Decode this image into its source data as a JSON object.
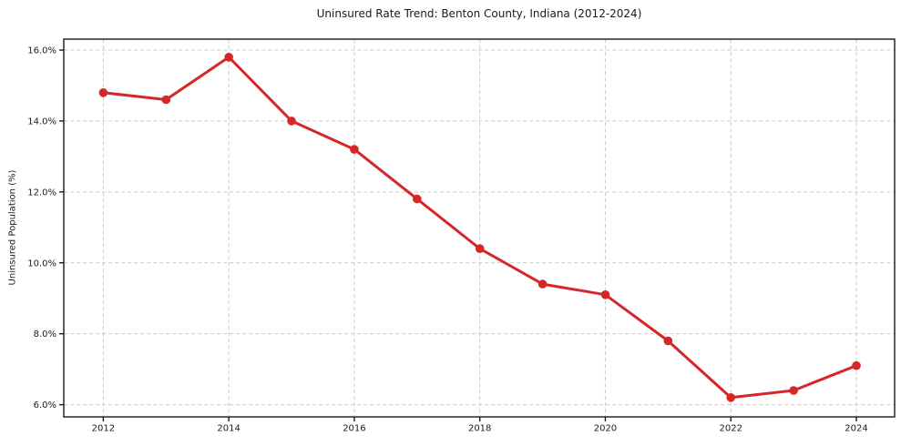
{
  "chart_data": {
    "type": "line",
    "title": "Uninsured Rate Trend: Benton County, Indiana (2012-2024)",
    "xlabel": "",
    "ylabel": "Uninsured Population (%)",
    "x": [
      2012,
      2013,
      2014,
      2015,
      2016,
      2017,
      2018,
      2019,
      2020,
      2021,
      2022,
      2023,
      2024
    ],
    "values": [
      14.8,
      14.6,
      15.8,
      14.0,
      13.2,
      11.8,
      10.4,
      9.4,
      9.1,
      7.8,
      6.2,
      6.4,
      7.1
    ],
    "x_ticks": [
      2012,
      2014,
      2016,
      2018,
      2020,
      2022,
      2024
    ],
    "x_tick_labels": [
      "2012",
      "2014",
      "2016",
      "2018",
      "2020",
      "2022",
      "2024"
    ],
    "y_ticks": [
      6,
      8,
      10,
      12,
      14,
      16
    ],
    "y_tick_labels": [
      "6.0%",
      "8.0%",
      "10.0%",
      "12.0%",
      "14.0%",
      "16.0%"
    ],
    "xlim": [
      2011.37,
      2024.61
    ],
    "ylim": [
      5.656,
      16.308
    ],
    "grid": true,
    "grid_style": "dashed",
    "legend": "none",
    "colors": {
      "line": "#d62728",
      "marker": "#d62728",
      "grid": "#cccccc",
      "spine": "#1a1a1a",
      "tick_text": "#1a1a1a",
      "background": "#ffffff"
    }
  }
}
